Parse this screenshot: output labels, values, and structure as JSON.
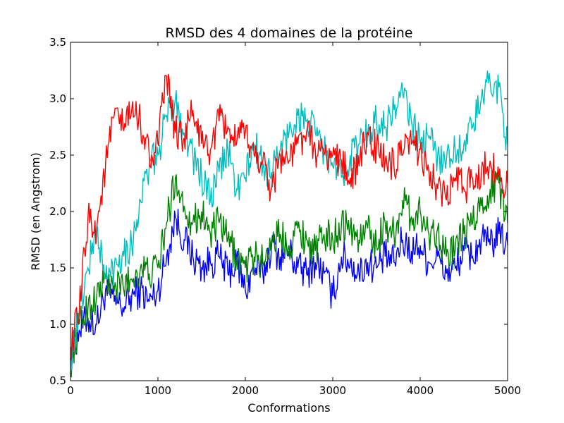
{
  "chart_data": {
    "type": "line",
    "title": "RMSD des 4 domaines de la protéine",
    "xlabel": "Conformations",
    "ylabel": "RMSD (en Angstrom)",
    "xlim": [
      0,
      5000
    ],
    "ylim": [
      0.5,
      3.5
    ],
    "xticks": [
      0,
      1000,
      2000,
      3000,
      4000,
      5000
    ],
    "yticks": [
      0.5,
      1.0,
      1.5,
      2.0,
      2.5,
      3.0,
      3.5
    ],
    "xtick_labels": [
      "0",
      "1000",
      "2000",
      "3000",
      "4000",
      "5000"
    ],
    "ytick_labels": [
      "0.5",
      "1.0",
      "1.5",
      "2.0",
      "2.5",
      "3.0",
      "3.5"
    ],
    "grid": false,
    "legend": "none",
    "series": [
      {
        "color": "#0000ff",
        "x": [
          0,
          100,
          200,
          300,
          400,
          500,
          600,
          700,
          800,
          900,
          1000,
          1100,
          1200,
          1300,
          1400,
          1500,
          1600,
          1700,
          1800,
          1900,
          2000,
          2100,
          2200,
          2300,
          2400,
          2500,
          2600,
          2700,
          2800,
          2900,
          3000,
          3100,
          3200,
          3300,
          3400,
          3500,
          3600,
          3700,
          3800,
          3900,
          4000,
          4100,
          4200,
          4300,
          4400,
          4500,
          4600,
          4700,
          4800,
          4900,
          5000
        ],
        "y": [
          0.7,
          0.95,
          1.05,
          1.0,
          1.3,
          1.2,
          1.15,
          1.25,
          1.3,
          1.2,
          1.3,
          1.6,
          1.95,
          1.75,
          1.6,
          1.5,
          1.55,
          1.6,
          1.45,
          1.55,
          1.3,
          1.5,
          1.45,
          1.7,
          1.6,
          1.65,
          1.5,
          1.45,
          1.55,
          1.45,
          1.25,
          1.6,
          1.55,
          1.45,
          1.55,
          1.5,
          1.6,
          1.55,
          1.75,
          1.65,
          1.7,
          1.55,
          1.6,
          1.45,
          1.5,
          1.65,
          1.6,
          1.75,
          1.7,
          1.8,
          1.7
        ]
      },
      {
        "color": "#008000",
        "x": [
          0,
          100,
          200,
          300,
          400,
          500,
          600,
          700,
          800,
          900,
          1000,
          1100,
          1200,
          1300,
          1400,
          1500,
          1600,
          1700,
          1800,
          1900,
          2000,
          2100,
          2200,
          2300,
          2400,
          2500,
          2600,
          2700,
          2800,
          2900,
          3000,
          3100,
          3200,
          3300,
          3400,
          3500,
          3600,
          3700,
          3800,
          3900,
          4000,
          4100,
          4200,
          4300,
          4400,
          4500,
          4600,
          4700,
          4800,
          4900,
          5000
        ],
        "y": [
          0.65,
          1.0,
          1.15,
          1.25,
          1.4,
          1.3,
          1.35,
          1.4,
          1.5,
          1.45,
          1.5,
          1.9,
          2.3,
          2.05,
          1.9,
          2.0,
          1.8,
          1.9,
          1.75,
          1.6,
          1.5,
          1.6,
          1.55,
          1.75,
          1.8,
          1.7,
          1.85,
          1.75,
          1.65,
          1.8,
          1.75,
          1.9,
          1.85,
          1.75,
          1.85,
          1.7,
          1.9,
          1.8,
          2.1,
          1.95,
          2.0,
          1.8,
          1.85,
          1.6,
          1.65,
          1.8,
          1.9,
          2.05,
          2.2,
          2.25,
          1.9
        ]
      },
      {
        "color": "#00bfbf",
        "x": [
          0,
          100,
          200,
          300,
          400,
          500,
          600,
          700,
          800,
          900,
          1000,
          1100,
          1200,
          1300,
          1400,
          1500,
          1600,
          1700,
          1800,
          1900,
          2000,
          2100,
          2200,
          2300,
          2400,
          2500,
          2600,
          2700,
          2800,
          2900,
          3000,
          3100,
          3200,
          3300,
          3400,
          3500,
          3600,
          3700,
          3800,
          3900,
          4000,
          4100,
          4200,
          4300,
          4400,
          4500,
          4600,
          4700,
          4800,
          4900,
          5000
        ],
        "y": [
          0.7,
          1.1,
          1.5,
          1.85,
          1.4,
          1.5,
          1.65,
          1.7,
          2.1,
          2.4,
          2.5,
          2.85,
          3.0,
          2.7,
          2.5,
          2.3,
          2.1,
          2.35,
          2.55,
          2.2,
          2.3,
          2.6,
          2.4,
          2.35,
          2.55,
          2.7,
          2.85,
          2.8,
          2.7,
          2.55,
          2.4,
          2.3,
          2.5,
          2.6,
          2.7,
          2.8,
          2.75,
          2.9,
          3.05,
          2.8,
          2.6,
          2.65,
          2.5,
          2.45,
          2.55,
          2.6,
          2.75,
          3.0,
          3.15,
          3.1,
          2.6
        ]
      },
      {
        "color": "#ff0000",
        "x": [
          0,
          100,
          200,
          300,
          400,
          500,
          600,
          700,
          800,
          900,
          1000,
          1100,
          1200,
          1300,
          1400,
          1500,
          1600,
          1700,
          1800,
          1900,
          2000,
          2100,
          2200,
          2300,
          2400,
          2500,
          2600,
          2700,
          2800,
          2900,
          3000,
          3100,
          3200,
          3300,
          3400,
          3500,
          3600,
          3700,
          3800,
          3900,
          4000,
          4100,
          4200,
          4300,
          4400,
          4500,
          4600,
          4700,
          4800,
          4900,
          5000
        ],
        "y": [
          0.8,
          1.1,
          1.95,
          1.85,
          2.4,
          2.85,
          2.75,
          2.9,
          2.8,
          2.5,
          2.6,
          3.2,
          2.7,
          2.65,
          2.9,
          2.6,
          2.55,
          2.8,
          2.75,
          2.6,
          2.7,
          2.5,
          2.45,
          2.2,
          2.5,
          2.45,
          2.6,
          2.7,
          2.55,
          2.5,
          2.5,
          2.45,
          2.3,
          2.4,
          2.7,
          2.55,
          2.45,
          2.4,
          2.5,
          2.6,
          2.55,
          2.35,
          2.2,
          2.1,
          2.3,
          2.2,
          2.3,
          2.35,
          2.45,
          2.3,
          2.25
        ]
      }
    ]
  }
}
